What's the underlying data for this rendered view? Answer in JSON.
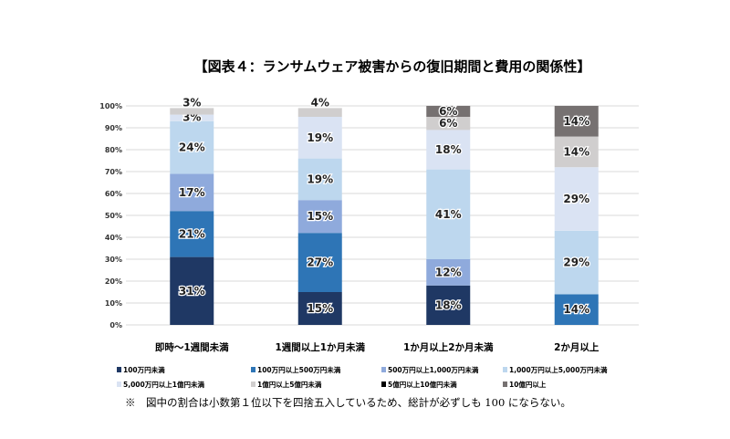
{
  "chart_data": {
    "type": "bar",
    "stacked": true,
    "title": "【図表４：ランサムウェア被害からの復旧期間と費用の関係性】",
    "categories": [
      "即時〜1週間未満",
      "1週間以上1か月未満",
      "1か月以上2か月未満",
      "2か月以上"
    ],
    "ylim": [
      0,
      100
    ],
    "yticks": [
      "0%",
      "10%",
      "20%",
      "30%",
      "40%",
      "50%",
      "60%",
      "70%",
      "80%",
      "90%",
      "100%"
    ],
    "grid": true,
    "legend_position": "bottom",
    "series": [
      {
        "name": "100万円未満",
        "color": "#1f3864",
        "values": [
          31,
          15,
          18,
          null
        ]
      },
      {
        "name": "100万円以上500万円未満",
        "color": "#2e75b6",
        "values": [
          21,
          27,
          null,
          14
        ]
      },
      {
        "name": "500万円以上1,000万円未満",
        "color": "#8faadc",
        "values": [
          17,
          15,
          12,
          null
        ]
      },
      {
        "name": "1,000万円以上5,000万円未満",
        "color": "#bdd7ee",
        "values": [
          24,
          19,
          41,
          29
        ]
      },
      {
        "name": "5,000万円以上1億円未満",
        "color": "#dae3f3",
        "values": [
          3,
          19,
          18,
          29
        ]
      },
      {
        "name": "1億円以上5億円未満",
        "color": "#d0cece",
        "values": [
          3,
          4,
          6,
          14
        ]
      },
      {
        "name": "5億円以上10億円未満",
        "color": "#000000",
        "values": [
          null,
          null,
          null,
          null
        ]
      },
      {
        "name": "10億円以上",
        "color": "#767171",
        "values": [
          null,
          null,
          6,
          14
        ]
      }
    ],
    "note": "※　図中の割合は小数第１位以下を四捨五入しているため、総計が必ずしも 100 にならない。"
  }
}
